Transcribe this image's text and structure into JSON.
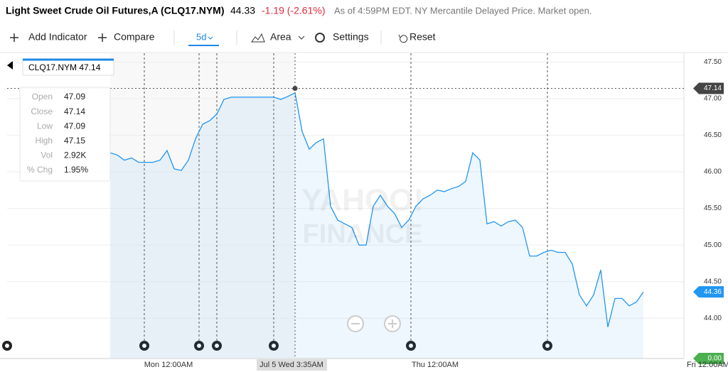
{
  "header": {
    "title": "Light Sweet Crude Oil Futures,A (CLQ17.NYM)",
    "price": "44.33",
    "change": "-1.19 (-2.61%)",
    "note": "As of 4:59PM EDT. NY Mercantile Delayed Price. Market open."
  },
  "toolbar": {
    "add_indicator": "Add Indicator",
    "compare": "Compare",
    "range": "5d",
    "chart_type": "Area",
    "settings": "Settings",
    "reset": "Reset"
  },
  "tooltip": {
    "tag": "CLQ17.NYM 47.14",
    "rows": [
      [
        "Open",
        "47.09"
      ],
      [
        "Close",
        "47.14"
      ],
      [
        "Low",
        "47.09"
      ],
      [
        "High",
        "47.15"
      ],
      [
        "Vol",
        "2.92K"
      ],
      [
        "% Chg",
        "1.95%"
      ]
    ]
  },
  "chart_data": {
    "type": "area",
    "watermark": [
      "YAHOO!",
      "FINANCE"
    ],
    "x_labels": [
      "Mon 12:00AM",
      "Jul 5 Wed 3:35AM",
      "Thu 12:00AM",
      "Fri 12:00AM"
    ],
    "series": [
      {
        "name": "CLQ17.NYM",
        "color": "#2196f3",
        "values": [
          46.26,
          46.23,
          46.16,
          46.19,
          46.13,
          46.13,
          46.13,
          46.16,
          46.29,
          46.04,
          46.02,
          46.16,
          46.45,
          46.65,
          46.7,
          46.79,
          46.99,
          47.02,
          47.02,
          47.02,
          47.02,
          47.02,
          47.02,
          47.02,
          46.99,
          47.03,
          47.08,
          46.55,
          46.31,
          46.4,
          46.45,
          45.53,
          45.34,
          45.29,
          45.24,
          45.0,
          45.0,
          45.53,
          45.68,
          45.53,
          45.43,
          45.24,
          45.34,
          45.53,
          45.63,
          45.68,
          45.75,
          45.73,
          45.77,
          45.8,
          45.87,
          46.26,
          46.16,
          45.29,
          45.32,
          45.26,
          45.32,
          45.34,
          45.24,
          44.85,
          44.85,
          44.9,
          44.93,
          44.9,
          44.9,
          44.74,
          44.32,
          44.17,
          44.32,
          44.66,
          43.88,
          44.27,
          44.27,
          44.17,
          44.22,
          44.36
        ]
      }
    ],
    "ylim": [
      43.45,
      47.62
    ],
    "yticks": [
      {
        "value": 47.5,
        "label": "47.50"
      },
      {
        "value": 47.0,
        "label": "47.00"
      },
      {
        "value": 46.5,
        "label": "46.50"
      },
      {
        "value": 46.0,
        "label": "46.00"
      },
      {
        "value": 45.5,
        "label": "45.50"
      },
      {
        "value": 45.0,
        "label": "45.00"
      },
      {
        "value": 44.5,
        "label": "44.50"
      },
      {
        "value": 44.0,
        "label": "44.00"
      }
    ],
    "grid": true,
    "crosshair": {
      "value": 47.14,
      "label": "47.14"
    },
    "last": {
      "value": 44.36,
      "label": "44.36"
    },
    "volume_label": "0.00"
  }
}
